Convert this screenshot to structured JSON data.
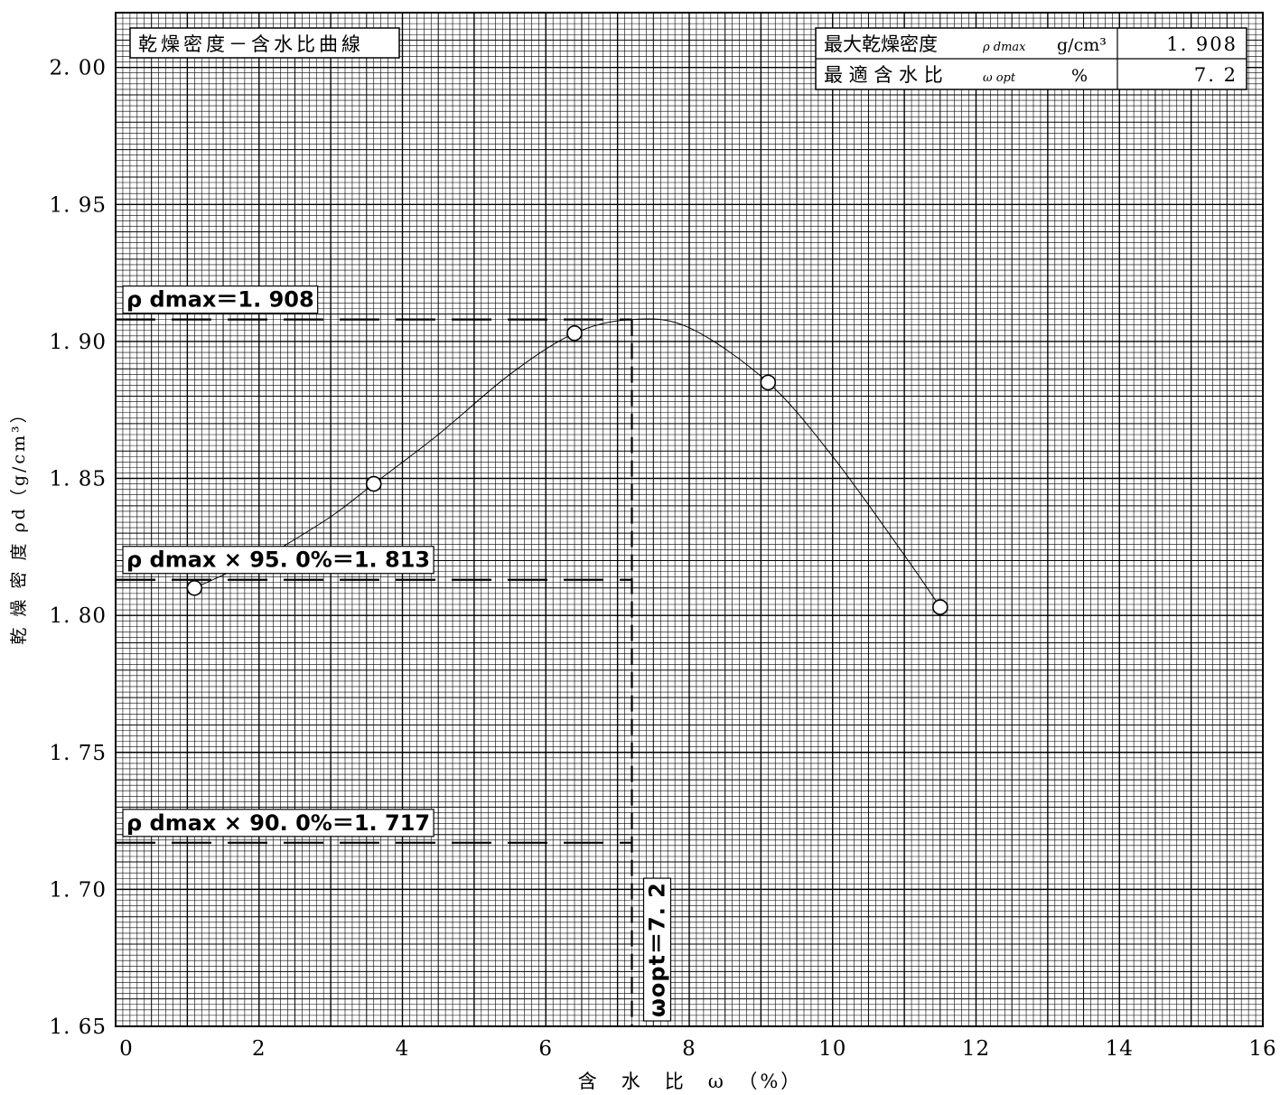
{
  "chart_data": {
    "type": "scatter",
    "title": "乾燥密度－含水比曲線",
    "xlabel": "含　水　比　ω　（%）",
    "ylabel": "乾 燥 密 度 ρd（g/cm³）",
    "xlim": [
      0,
      16
    ],
    "ylim": [
      1.65,
      2.02
    ],
    "xticks": [
      0,
      2,
      4,
      6,
      8,
      10,
      12,
      14,
      16
    ],
    "xtick_labels": [
      "0",
      "2",
      "4",
      "6",
      "8",
      "10",
      "12",
      "14",
      "16"
    ],
    "yticks": [
      1.65,
      1.7,
      1.75,
      1.8,
      1.85,
      1.9,
      1.95,
      2.0
    ],
    "ytick_labels": [
      "1. 65",
      "1. 70",
      "1. 75",
      "1. 80",
      "1. 85",
      "1. 90",
      "1. 95",
      "2. 00"
    ],
    "grid": true,
    "series": [
      {
        "points": [
          {
            "x": 1.1,
            "y": 1.81
          },
          {
            "x": 3.6,
            "y": 1.848
          },
          {
            "x": 6.4,
            "y": 1.903
          },
          {
            "x": 9.1,
            "y": 1.885
          },
          {
            "x": 11.5,
            "y": 1.803
          }
        ]
      }
    ],
    "curve": [
      [
        2.2,
        1.823
      ],
      [
        3.0,
        1.836
      ],
      [
        3.6,
        1.848
      ],
      [
        4.5,
        1.866
      ],
      [
        5.5,
        1.888
      ],
      [
        6.4,
        1.903
      ],
      [
        7.2,
        1.908
      ],
      [
        8.0,
        1.905
      ],
      [
        9.1,
        1.885
      ],
      [
        10.0,
        1.858
      ],
      [
        11.0,
        1.822
      ],
      [
        11.5,
        1.803
      ]
    ],
    "reference_lines": [
      {
        "y": 1.908,
        "label": "ρ dmax＝1. 908"
      },
      {
        "y": 1.813,
        "label": "ρ dmax × 95. 0%＝1. 813"
      },
      {
        "y": 1.717,
        "label": "ρ dmax × 90. 0%＝1. 717"
      }
    ],
    "optimum_line": {
      "x": 7.2,
      "label": "ωopt＝7. 2"
    },
    "result_table": [
      {
        "label": "最大乾燥密度",
        "symbol": "ρ dmax",
        "unit": "g/cm³",
        "value": "1. 908"
      },
      {
        "label": "最 適 含 水 比",
        "symbol": "ω opt",
        "unit": "%",
        "value": "7. 2"
      }
    ]
  }
}
